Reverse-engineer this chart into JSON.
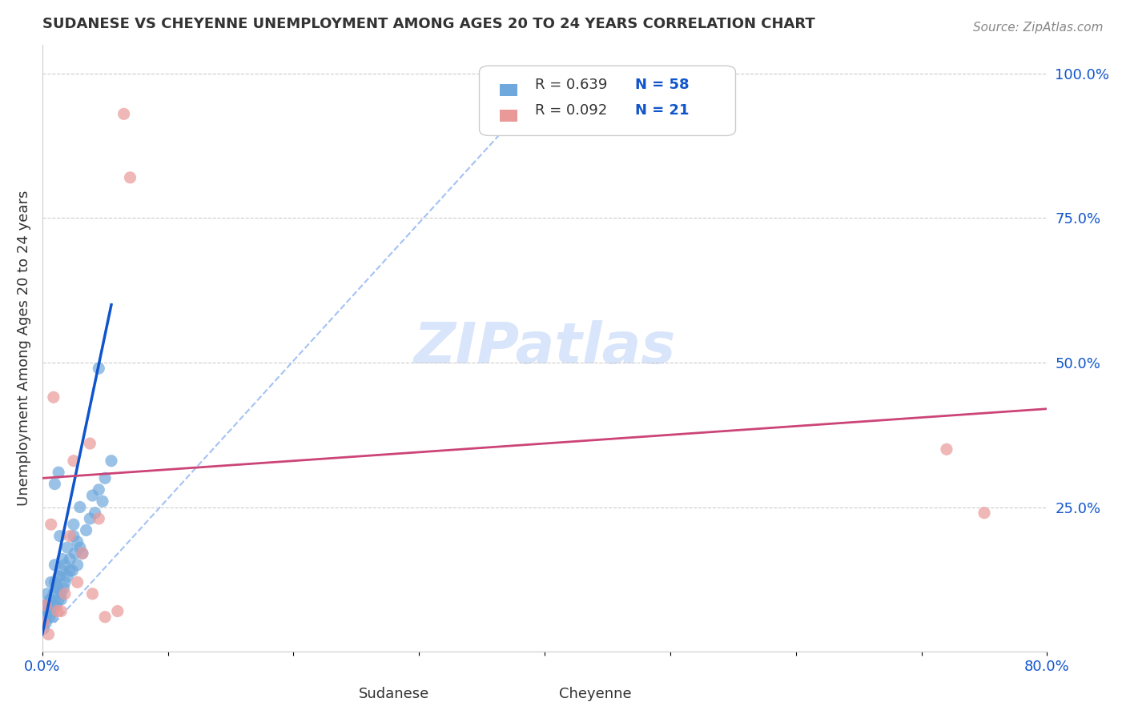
{
  "title": "SUDANESE VS CHEYENNE UNEMPLOYMENT AMONG AGES 20 TO 24 YEARS CORRELATION CHART",
  "source": "Source: ZipAtlas.com",
  "xlabel_color": "#4472c4",
  "ylabel": "Unemployment Among Ages 20 to 24 years",
  "x_tick_labels": [
    "0.0%",
    "",
    "",
    "",
    "",
    "",
    "",
    "",
    "80.0%"
  ],
  "y_tick_labels_right": [
    "100.0%",
    "75.0%",
    "50.0%",
    "25.0%",
    ""
  ],
  "sudanese_color": "#6fa8dc",
  "cheyenne_color": "#ea9999",
  "sudanese_line_color": "#1155cc",
  "cheyenne_line_color": "#cc4477",
  "dashed_line_color": "#a4c2f4",
  "watermark_color": "#c9daf8",
  "legend_r1": "R = 0.639",
  "legend_n1": "N = 58",
  "legend_r2": "R = 0.092",
  "legend_n2": "N = 21",
  "sudanese_x": [
    0.001,
    0.002,
    0.003,
    0.004,
    0.005,
    0.006,
    0.007,
    0.008,
    0.009,
    0.01,
    0.012,
    0.013,
    0.014,
    0.015,
    0.016,
    0.018,
    0.02,
    0.022,
    0.025,
    0.028,
    0.03,
    0.032,
    0.035,
    0.038,
    0.04,
    0.042,
    0.045,
    0.048,
    0.05,
    0.055,
    0.001,
    0.002,
    0.003,
    0.004,
    0.005,
    0.006,
    0.007,
    0.008,
    0.009,
    0.01,
    0.011,
    0.012,
    0.013,
    0.014,
    0.015,
    0.016,
    0.017,
    0.018,
    0.02,
    0.022,
    0.024,
    0.026,
    0.028,
    0.03,
    0.01,
    0.013,
    0.025,
    0.045
  ],
  "sudanese_y": [
    0.05,
    0.08,
    0.06,
    0.1,
    0.07,
    0.09,
    0.12,
    0.06,
    0.08,
    0.15,
    0.11,
    0.13,
    0.2,
    0.09,
    0.16,
    0.12,
    0.18,
    0.14,
    0.22,
    0.19,
    0.25,
    0.17,
    0.21,
    0.23,
    0.27,
    0.24,
    0.28,
    0.26,
    0.3,
    0.33,
    0.04,
    0.06,
    0.05,
    0.07,
    0.08,
    0.06,
    0.09,
    0.07,
    0.1,
    0.12,
    0.08,
    0.11,
    0.09,
    0.13,
    0.1,
    0.14,
    0.11,
    0.15,
    0.13,
    0.16,
    0.14,
    0.17,
    0.15,
    0.18,
    0.29,
    0.31,
    0.2,
    0.49
  ],
  "cheyenne_x": [
    0.001,
    0.003,
    0.005,
    0.007,
    0.009,
    0.012,
    0.015,
    0.018,
    0.022,
    0.025,
    0.028,
    0.032,
    0.038,
    0.04,
    0.045,
    0.05,
    0.06,
    0.065,
    0.07,
    0.72,
    0.75
  ],
  "cheyenne_y": [
    0.05,
    0.08,
    0.03,
    0.22,
    0.44,
    0.07,
    0.07,
    0.1,
    0.2,
    0.33,
    0.12,
    0.17,
    0.36,
    0.1,
    0.23,
    0.06,
    0.07,
    0.93,
    0.82,
    0.35,
    0.24
  ],
  "xlim": [
    0.0,
    0.8
  ],
  "ylim": [
    0.0,
    1.05
  ],
  "figsize": [
    14.06,
    8.92
  ],
  "dpi": 100
}
